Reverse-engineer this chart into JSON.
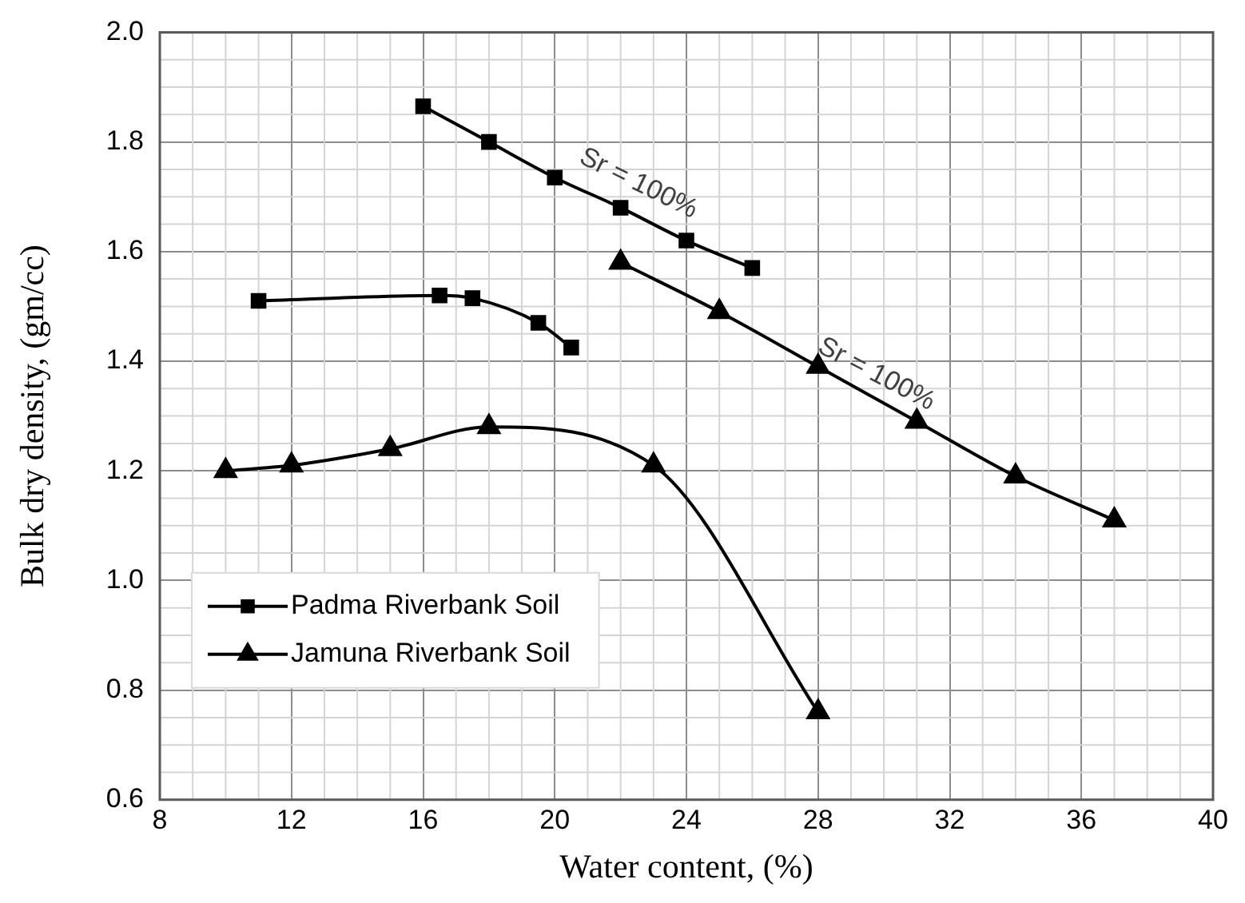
{
  "chart_data": {
    "type": "line",
    "xlabel": "Water content, (%)",
    "ylabel": "Bulk dry density, (gm/cc)",
    "xlim": [
      8,
      40
    ],
    "xticks": [
      8,
      12,
      16,
      20,
      24,
      28,
      32,
      36,
      40
    ],
    "ylim": [
      0.6,
      2.0
    ],
    "yticks": [
      0.6,
      0.8,
      {
        "value": 1,
        "label": "1.0"
      },
      1.2,
      1.4,
      1.6,
      1.8,
      {
        "value": 2,
        "label": "2.0"
      }
    ],
    "grid": true,
    "legend": "bottom left",
    "line_style": "solid",
    "series": [
      {
        "name": "Padma Riverbank Soil",
        "color": "#000000",
        "marker": "square",
        "x": [
          11,
          16.5,
          17.5,
          19.5,
          20.5
        ],
        "values": [
          1.51,
          1.52,
          1.515,
          1.47,
          1.425
        ]
      },
      {
        "name": "Jamuna Riverbank Soil",
        "color": "#000000",
        "marker": "triangle",
        "x": [
          10,
          12,
          15,
          18,
          23,
          28
        ],
        "values": [
          1.2,
          1.21,
          1.24,
          1.28,
          1.21,
          0.76
        ]
      },
      {
        "color": "#000000",
        "marker": "square",
        "x": [
          16,
          18,
          20,
          22,
          24,
          26
        ],
        "values": [
          1.865,
          1.8,
          1.735,
          1.68,
          1.62,
          1.57
        ]
      },
      {
        "color": "#000000",
        "marker": "triangle",
        "x": [
          22,
          25,
          28,
          31,
          34,
          37
        ],
        "values": [
          1.58,
          1.49,
          1.39,
          1.29,
          1.19,
          1.11
        ]
      }
    ],
    "annotations": [
      "Sr = 100%",
      "Sr = 100%"
    ]
  }
}
